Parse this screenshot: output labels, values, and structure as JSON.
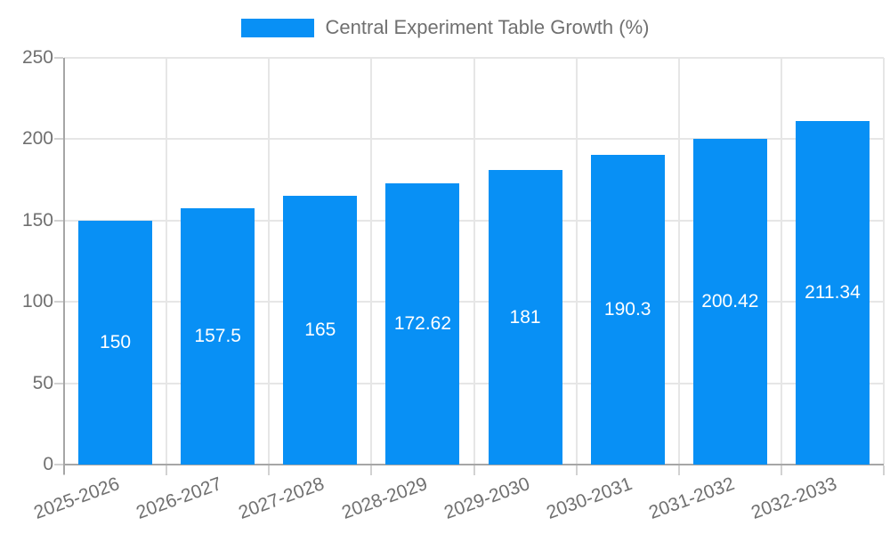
{
  "chart_data": {
    "type": "bar",
    "title": "Central Experiment Table Growth (%)",
    "categories": [
      "2025-2026",
      "2026-2027",
      "2027-2028",
      "2028-2029",
      "2029-2030",
      "2030-2031",
      "2031-2032",
      "2032-2033"
    ],
    "values": [
      150,
      157.5,
      165,
      172.62,
      181,
      190.3,
      200.42,
      211.34
    ],
    "value_labels": [
      "150",
      "157.5",
      "165",
      "172.62",
      "181",
      "190.3",
      "200.42",
      "211.34"
    ],
    "xlabel": "",
    "ylabel": "",
    "ylim": [
      0,
      250
    ],
    "yticks": [
      0,
      50,
      100,
      150,
      200,
      250
    ],
    "grid": true,
    "legend_position": "top",
    "x_label_rotation_deg": -20,
    "colors": {
      "bar": "#0890f5",
      "grid": "#e6e6e6",
      "tick": "#d2d2d2",
      "axis": "#a6a6a6",
      "text": "#707070",
      "bar_label": "#ffffff",
      "background": "#ffffff"
    }
  }
}
